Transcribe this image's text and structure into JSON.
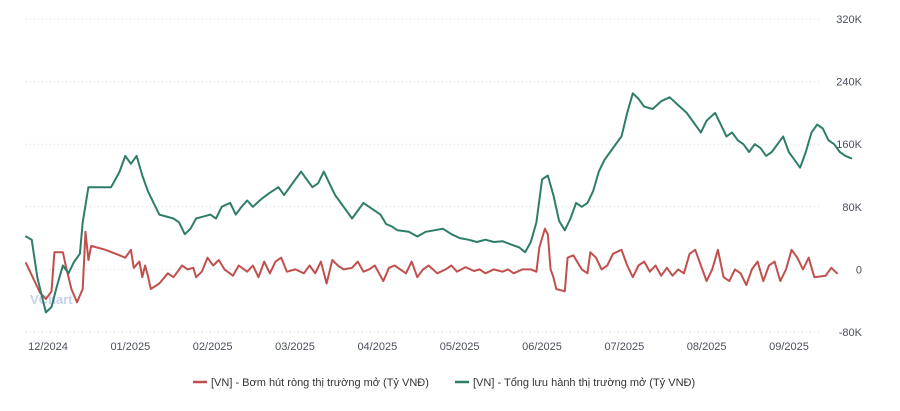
{
  "chart_data": {
    "type": "line",
    "x_ticks": [
      "12/2024",
      "01/2025",
      "02/2025",
      "03/2025",
      "04/2025",
      "05/2025",
      "06/2025",
      "07/2025",
      "08/2025",
      "09/2025"
    ],
    "y_ticks": [
      "320K",
      "240K",
      "160K",
      "80K",
      "0",
      "-80K"
    ],
    "ylim": [
      -80000,
      320000
    ],
    "xlim": [
      0,
      280
    ],
    "grid": true,
    "legend_position": "bottom",
    "series": [
      {
        "name": "[VN] - Bơm hút ròng thị trường mở (Tỷ VNĐ)",
        "color": "#c0504d",
        "points": [
          [
            0,
            8000
          ],
          [
            3,
            -15000
          ],
          [
            5,
            -30000
          ],
          [
            7,
            -38000
          ],
          [
            9,
            -28000
          ],
          [
            10,
            22000
          ],
          [
            13,
            22000
          ],
          [
            14,
            5000
          ],
          [
            16,
            -25000
          ],
          [
            18,
            -42000
          ],
          [
            20,
            -25000
          ],
          [
            21,
            48000
          ],
          [
            22,
            12000
          ],
          [
            23,
            30000
          ],
          [
            28,
            25000
          ],
          [
            33,
            18000
          ],
          [
            35,
            15000
          ],
          [
            37,
            25000
          ],
          [
            38,
            2000
          ],
          [
            40,
            10000
          ],
          [
            41,
            -10000
          ],
          [
            42,
            5000
          ],
          [
            43,
            -8000
          ],
          [
            44,
            -25000
          ],
          [
            47,
            -18000
          ],
          [
            50,
            -5000
          ],
          [
            52,
            -10000
          ],
          [
            55,
            5000
          ],
          [
            57,
            0
          ],
          [
            59,
            2000
          ],
          [
            60,
            -10000
          ],
          [
            62,
            -3000
          ],
          [
            64,
            15000
          ],
          [
            66,
            5000
          ],
          [
            68,
            12000
          ],
          [
            70,
            0
          ],
          [
            73,
            -8000
          ],
          [
            75,
            5000
          ],
          [
            78,
            -3000
          ],
          [
            80,
            5000
          ],
          [
            82,
            -10000
          ],
          [
            84,
            10000
          ],
          [
            86,
            -5000
          ],
          [
            88,
            10000
          ],
          [
            90,
            15000
          ],
          [
            92,
            -3000
          ],
          [
            95,
            0
          ],
          [
            98,
            -5000
          ],
          [
            100,
            5000
          ],
          [
            102,
            -5000
          ],
          [
            104,
            10000
          ],
          [
            106,
            -18000
          ],
          [
            108,
            12000
          ],
          [
            110,
            5000
          ],
          [
            112,
            0
          ],
          [
            115,
            2000
          ],
          [
            117,
            10000
          ],
          [
            119,
            -3000
          ],
          [
            121,
            0
          ],
          [
            123,
            5000
          ],
          [
            126,
            -15000
          ],
          [
            128,
            2000
          ],
          [
            130,
            5000
          ],
          [
            132,
            0
          ],
          [
            134,
            -5000
          ],
          [
            136,
            10000
          ],
          [
            138,
            -10000
          ],
          [
            140,
            0
          ],
          [
            142,
            5000
          ],
          [
            145,
            -5000
          ],
          [
            148,
            0
          ],
          [
            150,
            5000
          ],
          [
            152,
            -3000
          ],
          [
            155,
            3000
          ],
          [
            158,
            -2000
          ],
          [
            160,
            0
          ],
          [
            162,
            -5000
          ],
          [
            165,
            0
          ],
          [
            168,
            -3000
          ],
          [
            170,
            0
          ],
          [
            172,
            -5000
          ],
          [
            175,
            0
          ],
          [
            178,
            0
          ],
          [
            180,
            -3000
          ],
          [
            181,
            28000
          ],
          [
            183,
            52000
          ],
          [
            184,
            45000
          ],
          [
            185,
            0
          ],
          [
            186,
            -10000
          ],
          [
            187,
            -25000
          ],
          [
            190,
            -28000
          ],
          [
            191,
            15000
          ],
          [
            193,
            18000
          ],
          [
            196,
            0
          ],
          [
            198,
            -5000
          ],
          [
            199,
            22000
          ],
          [
            201,
            15000
          ],
          [
            203,
            0
          ],
          [
            205,
            5000
          ],
          [
            207,
            20000
          ],
          [
            210,
            25000
          ],
          [
            212,
            5000
          ],
          [
            214,
            -10000
          ],
          [
            216,
            5000
          ],
          [
            218,
            10000
          ],
          [
            220,
            -3000
          ],
          [
            222,
            5000
          ],
          [
            224,
            -8000
          ],
          [
            226,
            2000
          ],
          [
            228,
            -8000
          ],
          [
            230,
            0
          ],
          [
            232,
            -5000
          ],
          [
            234,
            20000
          ],
          [
            236,
            25000
          ],
          [
            238,
            5000
          ],
          [
            240,
            -15000
          ],
          [
            242,
            0
          ],
          [
            244,
            25000
          ],
          [
            246,
            -10000
          ],
          [
            248,
            -15000
          ],
          [
            250,
            0
          ],
          [
            252,
            -5000
          ],
          [
            254,
            -20000
          ],
          [
            256,
            0
          ],
          [
            258,
            10000
          ],
          [
            260,
            -15000
          ],
          [
            262,
            5000
          ],
          [
            264,
            10000
          ],
          [
            266,
            -15000
          ],
          [
            268,
            0
          ],
          [
            270,
            25000
          ],
          [
            272,
            15000
          ],
          [
            274,
            0
          ],
          [
            276,
            15000
          ],
          [
            278,
            -10000
          ],
          [
            282,
            -8000
          ],
          [
            284,
            2000
          ],
          [
            286,
            -5000
          ]
        ]
      },
      {
        "name": "[VN] - Tổng lưu hành thị trường mở (Tỷ VNĐ)",
        "color": "#2e7d6b",
        "points": [
          [
            0,
            42000
          ],
          [
            2,
            38000
          ],
          [
            4,
            -10000
          ],
          [
            6,
            -40000
          ],
          [
            7,
            -55000
          ],
          [
            9,
            -48000
          ],
          [
            11,
            -20000
          ],
          [
            13,
            5000
          ],
          [
            15,
            -5000
          ],
          [
            17,
            10000
          ],
          [
            19,
            20000
          ],
          [
            20,
            60000
          ],
          [
            22,
            105000
          ],
          [
            25,
            105000
          ],
          [
            30,
            105000
          ],
          [
            33,
            125000
          ],
          [
            35,
            145000
          ],
          [
            37,
            135000
          ],
          [
            39,
            145000
          ],
          [
            41,
            120000
          ],
          [
            43,
            100000
          ],
          [
            45,
            85000
          ],
          [
            47,
            70000
          ],
          [
            52,
            65000
          ],
          [
            54,
            60000
          ],
          [
            56,
            45000
          ],
          [
            58,
            52000
          ],
          [
            60,
            65000
          ],
          [
            63,
            68000
          ],
          [
            65,
            70000
          ],
          [
            67,
            65000
          ],
          [
            69,
            80000
          ],
          [
            72,
            85000
          ],
          [
            74,
            70000
          ],
          [
            76,
            80000
          ],
          [
            78,
            88000
          ],
          [
            80,
            80000
          ],
          [
            83,
            90000
          ],
          [
            86,
            98000
          ],
          [
            89,
            105000
          ],
          [
            91,
            95000
          ],
          [
            93,
            105000
          ],
          [
            95,
            115000
          ],
          [
            97,
            125000
          ],
          [
            99,
            115000
          ],
          [
            101,
            105000
          ],
          [
            103,
            110000
          ],
          [
            105,
            125000
          ],
          [
            107,
            110000
          ],
          [
            109,
            95000
          ],
          [
            111,
            85000
          ],
          [
            113,
            75000
          ],
          [
            115,
            65000
          ],
          [
            117,
            75000
          ],
          [
            119,
            85000
          ],
          [
            121,
            80000
          ],
          [
            123,
            75000
          ],
          [
            125,
            70000
          ],
          [
            127,
            58000
          ],
          [
            129,
            55000
          ],
          [
            131,
            50000
          ],
          [
            135,
            48000
          ],
          [
            138,
            42000
          ],
          [
            141,
            48000
          ],
          [
            144,
            50000
          ],
          [
            147,
            52000
          ],
          [
            150,
            45000
          ],
          [
            153,
            40000
          ],
          [
            156,
            38000
          ],
          [
            159,
            35000
          ],
          [
            162,
            38000
          ],
          [
            165,
            35000
          ],
          [
            168,
            36000
          ],
          [
            171,
            32000
          ],
          [
            174,
            28000
          ],
          [
            176,
            22000
          ],
          [
            178,
            35000
          ],
          [
            180,
            60000
          ],
          [
            182,
            115000
          ],
          [
            184,
            120000
          ],
          [
            186,
            95000
          ],
          [
            188,
            62000
          ],
          [
            190,
            50000
          ],
          [
            192,
            65000
          ],
          [
            194,
            85000
          ],
          [
            196,
            80000
          ],
          [
            198,
            85000
          ],
          [
            200,
            100000
          ],
          [
            202,
            125000
          ],
          [
            204,
            140000
          ],
          [
            206,
            150000
          ],
          [
            208,
            160000
          ],
          [
            210,
            170000
          ],
          [
            212,
            200000
          ],
          [
            214,
            225000
          ],
          [
            216,
            218000
          ],
          [
            218,
            208000
          ],
          [
            221,
            205000
          ],
          [
            224,
            215000
          ],
          [
            227,
            220000
          ],
          [
            230,
            210000
          ],
          [
            233,
            200000
          ],
          [
            236,
            185000
          ],
          [
            238,
            175000
          ],
          [
            240,
            190000
          ],
          [
            243,
            200000
          ],
          [
            245,
            185000
          ],
          [
            247,
            170000
          ],
          [
            249,
            175000
          ],
          [
            251,
            165000
          ],
          [
            253,
            160000
          ],
          [
            255,
            150000
          ],
          [
            257,
            160000
          ],
          [
            259,
            155000
          ],
          [
            261,
            145000
          ],
          [
            263,
            150000
          ],
          [
            265,
            160000
          ],
          [
            267,
            170000
          ],
          [
            269,
            150000
          ],
          [
            271,
            140000
          ],
          [
            273,
            130000
          ],
          [
            275,
            150000
          ],
          [
            277,
            175000
          ],
          [
            279,
            185000
          ],
          [
            281,
            180000
          ],
          [
            283,
            165000
          ],
          [
            285,
            160000
          ],
          [
            287,
            150000
          ],
          [
            289,
            145000
          ],
          [
            291,
            142000
          ]
        ]
      }
    ]
  },
  "watermark": {
    "text": "VChart"
  }
}
